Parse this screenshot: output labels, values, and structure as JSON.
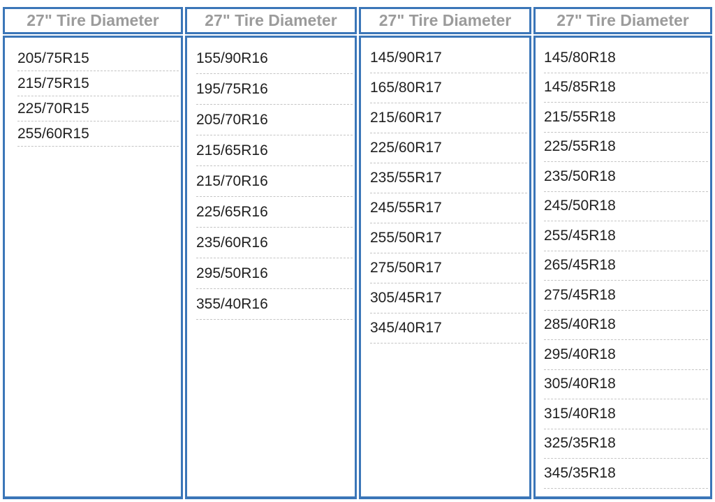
{
  "chart_data": {
    "type": "table",
    "columns": [
      {
        "header": "27\" Tire Diameter",
        "wheel_size": "R15",
        "values": [
          "205/75R15",
          "215/75R15",
          "225/70R15",
          "255/60R15"
        ]
      },
      {
        "header": "27\" Tire Diameter",
        "wheel_size": "R16",
        "values": [
          "155/90R16",
          "195/75R16",
          "205/70R16",
          "215/65R16",
          "215/70R16",
          "225/65R16",
          "235/60R16",
          "295/50R16",
          "355/40R16"
        ]
      },
      {
        "header": "27\" Tire Diameter",
        "wheel_size": "R17",
        "values": [
          "145/90R17",
          "165/80R17",
          "215/60R17",
          "225/60R17",
          "235/55R17",
          "245/55R17",
          "255/50R17",
          "275/50R17",
          "305/45R17",
          "345/40R17"
        ]
      },
      {
        "header": "27\" Tire Diameter",
        "wheel_size": "R18",
        "values": [
          "145/80R18",
          "145/85R18",
          "215/55R18",
          "225/55R18",
          "235/50R18",
          "245/50R18",
          "255/45R18",
          "265/45R18",
          "275/45R18",
          "285/40R18",
          "295/40R18",
          "305/40R18",
          "315/40R18",
          "325/35R18",
          "345/35R18"
        ]
      }
    ]
  },
  "colors": {
    "border_blue": "#3b76b8",
    "header_text": "#9b9b9b",
    "body_text": "#1f1f1f",
    "row_divider": "#c4c4c4",
    "background": "#ffffff"
  }
}
